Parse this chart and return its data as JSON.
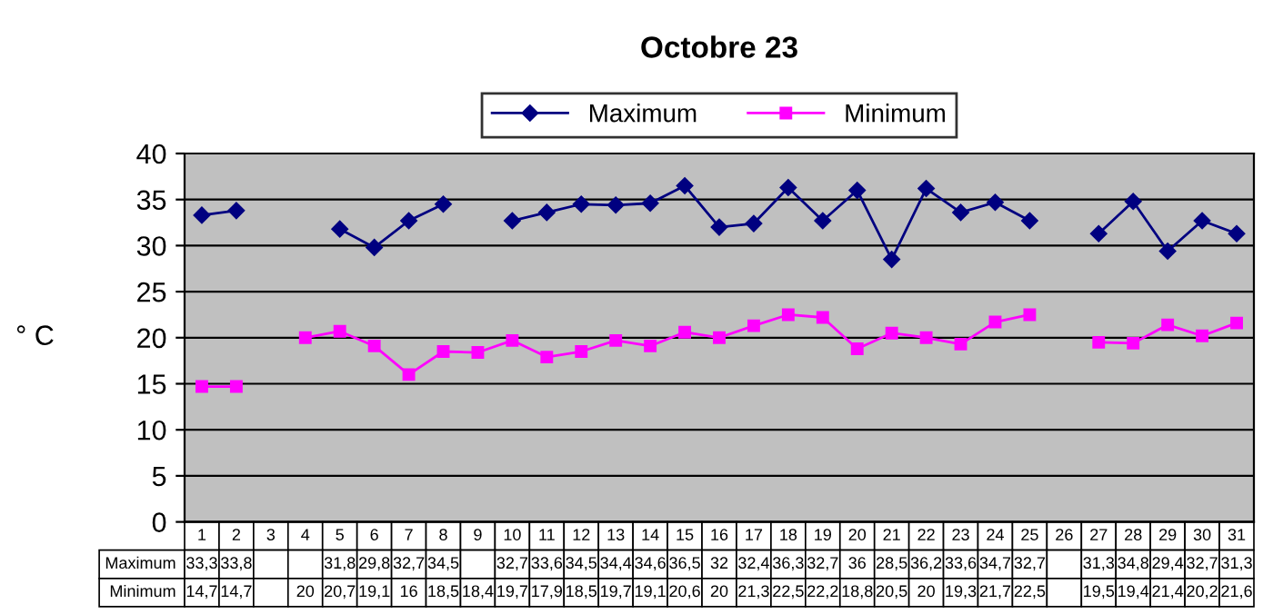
{
  "chart_data": {
    "type": "line",
    "title": "Octobre 23",
    "ylabel": "° C",
    "categories": [
      "1",
      "2",
      "3",
      "4",
      "5",
      "6",
      "7",
      "8",
      "9",
      "10",
      "11",
      "12",
      "13",
      "14",
      "15",
      "16",
      "17",
      "18",
      "19",
      "20",
      "21",
      "22",
      "23",
      "24",
      "25",
      "26",
      "27",
      "28",
      "29",
      "30",
      "31"
    ],
    "series": [
      {
        "name": "Maximum",
        "color": "#000080",
        "marker": "diamond",
        "values": [
          33.3,
          33.8,
          null,
          null,
          31.8,
          29.8,
          32.7,
          34.5,
          null,
          32.7,
          33.6,
          34.5,
          34.4,
          34.6,
          36.5,
          32,
          32.4,
          36.3,
          32.7,
          36,
          28.5,
          36.2,
          33.6,
          34.7,
          32.7,
          null,
          31.3,
          34.8,
          29.4,
          32.7,
          31.3
        ],
        "value_labels": [
          "33,3",
          "33,8",
          null,
          null,
          "31,8",
          "29,8",
          "32,7",
          "34,5",
          null,
          "32,7",
          "33,6",
          "34,5",
          "34,4",
          "34,6",
          "36,5",
          "32",
          "32,4",
          "36,3",
          "32,7",
          "36",
          "28,5",
          "36,2",
          "33,6",
          "34,7",
          "32,7",
          null,
          "31,3",
          "34,8",
          "29,4",
          "32,7",
          "31,3"
        ]
      },
      {
        "name": "Minimum",
        "color": "#ff00ff",
        "marker": "square",
        "values": [
          14.7,
          14.7,
          null,
          20,
          20.7,
          19.1,
          16,
          18.5,
          18.4,
          19.7,
          17.9,
          18.5,
          19.7,
          19.1,
          20.6,
          20,
          21.3,
          22.5,
          22.2,
          18.8,
          20.5,
          20,
          19.3,
          21.7,
          22.5,
          null,
          19.5,
          19.4,
          21.4,
          20.2,
          21.6
        ],
        "value_labels": [
          "14,7",
          "14,7",
          null,
          "20",
          "20,7",
          "19,1",
          "16",
          "18,5",
          "18,4",
          "19,7",
          "17,9",
          "18,5",
          "19,7",
          "19,1",
          "20,6",
          "20",
          "21,3",
          "22,5",
          "22,2",
          "18,8",
          "20,5",
          "20",
          "19,3",
          "21,7",
          "22,5",
          null,
          "19,5",
          "19,4",
          "21,4",
          "20,2",
          "21,6"
        ]
      }
    ],
    "ylim": [
      0,
      40
    ],
    "yticks": [
      0,
      5,
      10,
      15,
      20,
      25,
      30,
      35,
      40
    ],
    "grid": "y",
    "legend": "top",
    "line_style": "solid"
  }
}
